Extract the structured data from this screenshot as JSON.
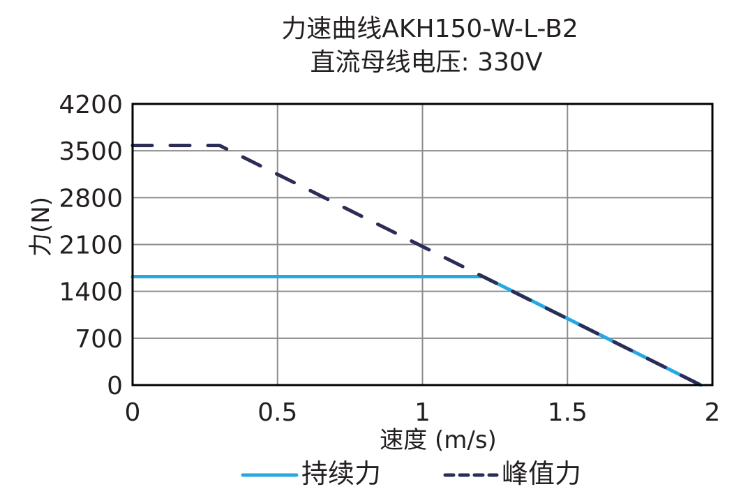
{
  "chart_data": {
    "type": "line",
    "title": "力速曲线AKH150-W-L-B2",
    "subtitle": "直流母线电压: 330V",
    "xlabel": "速度 (m/s)",
    "ylabel": "力(N)",
    "xlim": [
      0,
      2
    ],
    "ylim": [
      0,
      4200
    ],
    "x_ticks": [
      "0",
      "0.5",
      "1",
      "1.5",
      "2"
    ],
    "y_ticks": [
      "0",
      "700",
      "1400",
      "2100",
      "2800",
      "3500",
      "4200"
    ],
    "grid": true,
    "legend_position": "bottom",
    "series": [
      {
        "name": "持续力",
        "style": "solid",
        "color": "#29a8e0",
        "points": [
          [
            0,
            1620
          ],
          [
            1.21,
            1620
          ],
          [
            1.96,
            0
          ]
        ]
      },
      {
        "name": "峰值力",
        "style": "dashed",
        "color": "#2b2d55",
        "points": [
          [
            0,
            3580
          ],
          [
            0.3,
            3580
          ],
          [
            1.96,
            0
          ]
        ]
      }
    ]
  },
  "legend": {
    "continuous": "持续力",
    "peak": "峰值力"
  }
}
